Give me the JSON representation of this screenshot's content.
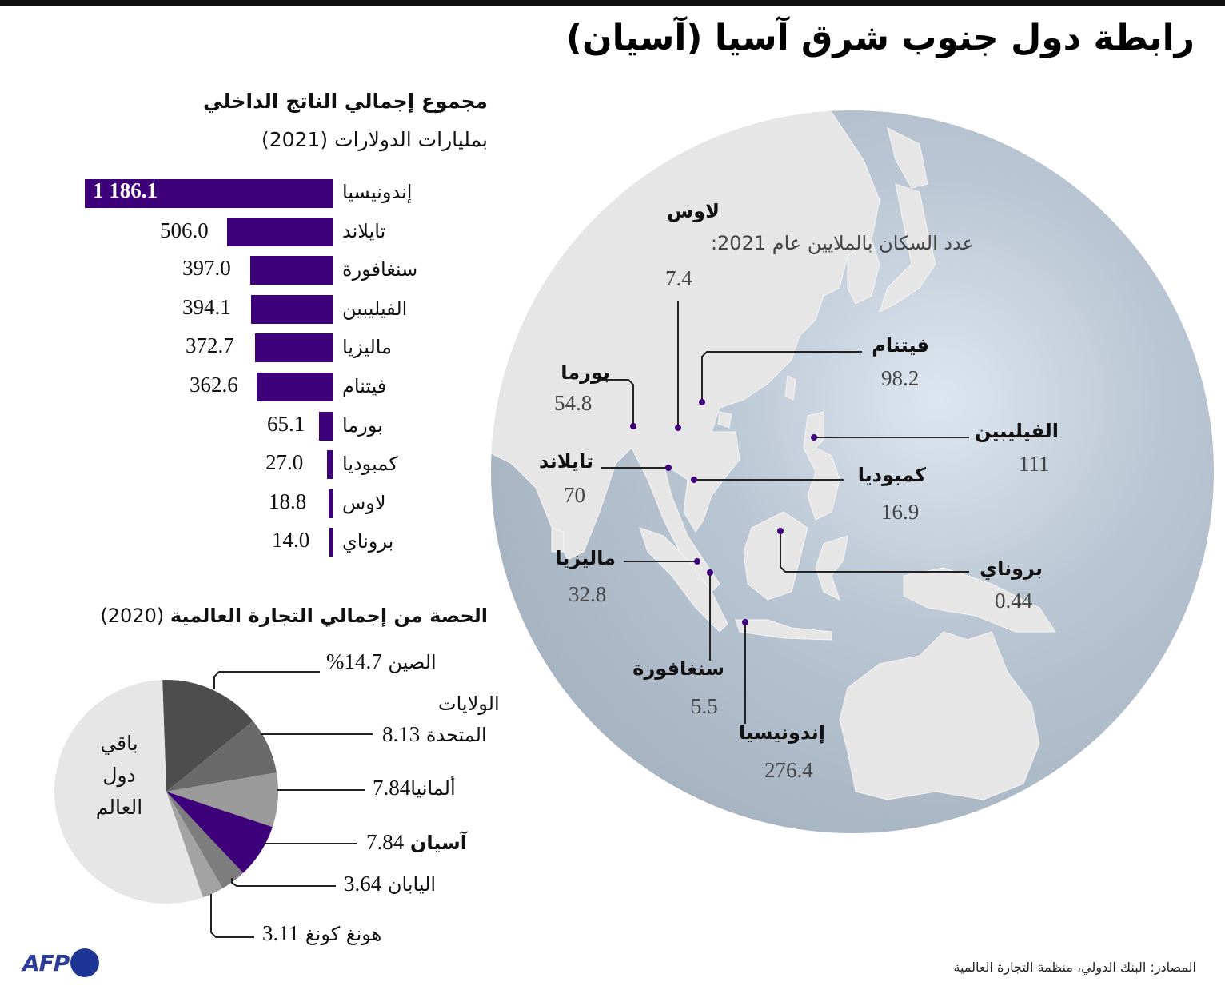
{
  "title": "رابطة دول جنوب شرق آسيا (آسيان)",
  "gdp": {
    "title": "مجموع إجمالي الناتج الداخلي",
    "subtitle": "بمليارات الدولارات (2021)",
    "bar_color": "#3e007a",
    "rows": [
      {
        "country": "إندونيسيا",
        "value": "1 186.1"
      },
      {
        "country": "تايلاند",
        "value": "506.0"
      },
      {
        "country": "سنغافورة",
        "value": "397.0"
      },
      {
        "country": "الفيليبين",
        "value": "394.1"
      },
      {
        "country": "ماليزيا",
        "value": "372.7"
      },
      {
        "country": "فيتنام",
        "value": "362.6"
      },
      {
        "country": "بورما",
        "value": "65.1"
      },
      {
        "country": "كمبوديا",
        "value": "27.0"
      },
      {
        "country": "لاوس",
        "value": "18.8"
      },
      {
        "country": "بروناي",
        "value": "14.0"
      }
    ]
  },
  "trade": {
    "title_bold": "الحصة من إجمالي التجارة العالمية",
    "title_year": "(2020)",
    "rest_label": [
      "باقي",
      "دول",
      "العالم"
    ],
    "slices": [
      {
        "name": "الصين",
        "value": "14.7%",
        "color": "#4d4d4d"
      },
      {
        "name_line1": "الولايات",
        "name_line2": "المتحدة",
        "value": "8.13",
        "color": "#6a6a6a"
      },
      {
        "name": "ألمانيا",
        "value": "7.84",
        "color": "#9a9a9a"
      },
      {
        "name": "آسيان",
        "value": "7.84",
        "color": "#3e007a"
      },
      {
        "name": "اليابان",
        "value": "3.64",
        "color": "#7d7d7d"
      },
      {
        "name": "هونغ كونغ",
        "value": "3.11",
        "color": "#a3a3a3"
      }
    ],
    "rest_color": "#e6e6e6"
  },
  "map": {
    "note": "عدد السكان بالملايين عام 2021:",
    "dot_color": "#3e007a",
    "countries": [
      {
        "name": "لاوس",
        "value": "7.4"
      },
      {
        "name": "فيتنام",
        "value": "98.2"
      },
      {
        "name": "بورما",
        "value": "54.8"
      },
      {
        "name": "الفيليبين",
        "value": "111"
      },
      {
        "name": "تايلاند",
        "value": "70"
      },
      {
        "name": "كمبوديا",
        "value": "16.9"
      },
      {
        "name": "ماليزيا",
        "value": "32.8"
      },
      {
        "name": "بروناي",
        "value": "0.44"
      },
      {
        "name": "سنغافورة",
        "value": "5.5"
      },
      {
        "name": "إندونيسيا",
        "value": "276.4"
      }
    ]
  },
  "source": "المصادر: البنك الدولي، منظمة التجارة العالمية",
  "logo": "AFP",
  "chart_data": [
    {
      "type": "bar",
      "title": "مجموع إجمالي الناتج الداخلي",
      "subtitle": "بمليارات الدولارات (2021)",
      "orientation": "horizontal",
      "categories": [
        "إندونيسيا",
        "تايلاند",
        "سنغافورة",
        "الفيليبين",
        "ماليزيا",
        "فيتنام",
        "بورما",
        "كمبوديا",
        "لاوس",
        "بروناي"
      ],
      "values": [
        1186.1,
        506.0,
        397.0,
        394.1,
        372.7,
        362.6,
        65.1,
        27.0,
        18.8,
        14.0
      ],
      "xlabel": "",
      "ylabel": "",
      "grid": false
    },
    {
      "type": "pie",
      "title": "الحصة من إجمالي التجارة العالمية (2020)",
      "categories": [
        "الصين",
        "الولايات المتحدة",
        "ألمانيا",
        "آسيان",
        "اليابان",
        "هونغ كونغ",
        "باقي دول العالم"
      ],
      "values": [
        14.7,
        8.13,
        7.84,
        7.84,
        3.64,
        3.11,
        54.74
      ],
      "unit": "%"
    },
    {
      "type": "table",
      "title": "عدد السكان بالملايين عام 2021",
      "categories": [
        "لاوس",
        "فيتنام",
        "بورما",
        "الفيليبين",
        "تايلاند",
        "كمبوديا",
        "ماليزيا",
        "بروناي",
        "سنغافورة",
        "إندونيسيا"
      ],
      "values": [
        7.4,
        98.2,
        54.8,
        111,
        70,
        16.9,
        32.8,
        0.44,
        5.5,
        276.4
      ]
    }
  ]
}
